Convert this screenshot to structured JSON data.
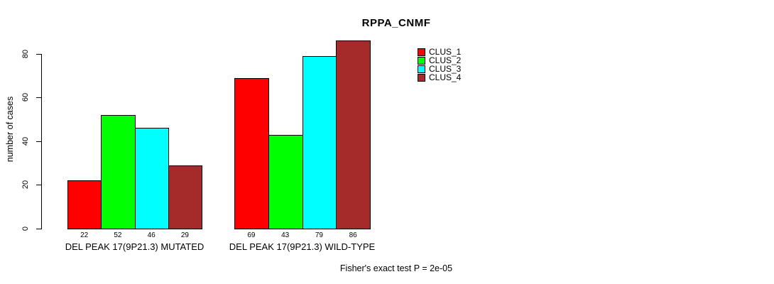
{
  "chart_data": {
    "type": "bar",
    "title": "RPPA_CNMF",
    "ylabel": "number of cases",
    "xlabel": "",
    "y_ticks": [
      0,
      20,
      40,
      60,
      80
    ],
    "ylim": [
      0,
      86
    ],
    "grid": false,
    "legend_position": "top-right-inside",
    "categories": [
      "DEL PEAK 17(9P21.3) MUTATED",
      "DEL PEAK 17(9P21.3) WILD-TYPE"
    ],
    "series": [
      {
        "name": "CLUS_1",
        "color": "#ff0000",
        "values": [
          22,
          69
        ]
      },
      {
        "name": "CLUS_2",
        "color": "#00ff00",
        "values": [
          52,
          43
        ]
      },
      {
        "name": "CLUS_3",
        "color": "#00ffff",
        "values": [
          46,
          79
        ]
      },
      {
        "name": "CLUS_4",
        "color": "#a52a2a",
        "values": [
          29,
          86
        ]
      }
    ],
    "bar_value_labels": [
      [
        22,
        52,
        46,
        29
      ],
      [
        69,
        43,
        79,
        86
      ]
    ],
    "annotation": "Fisher's exact test P = 2e-05",
    "axis_color": "#000000",
    "bar_border_color": "#000000"
  }
}
